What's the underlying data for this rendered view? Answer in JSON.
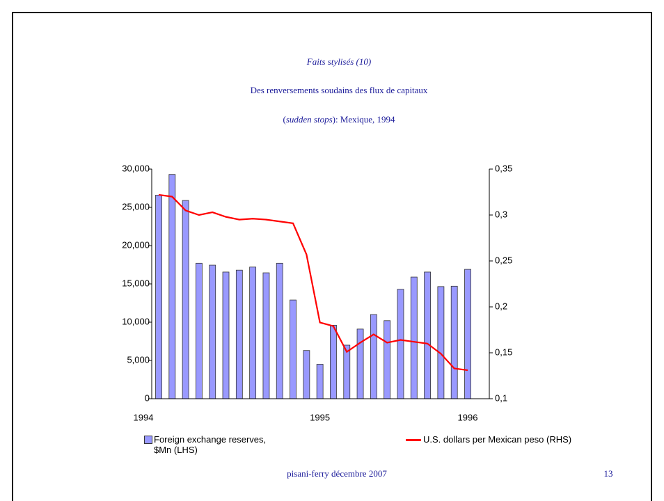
{
  "slide": {
    "kicker": "Faits stylisés (10)",
    "title": [
      "Des renversements soudains des flux de capitaux",
      "(",
      "sudden stops",
      "): Mexique, 1994"
    ],
    "footer": "pisani-ferry décembre 2007",
    "page": "13"
  },
  "chart_data": {
    "type": "bar_line",
    "categories": [
      "1994",
      null,
      null,
      null,
      null,
      null,
      null,
      null,
      null,
      null,
      null,
      null,
      "1995",
      null,
      null,
      null,
      null,
      null,
      null,
      null,
      null,
      null,
      null,
      "1996"
    ],
    "series": [
      {
        "name": "Foreign exchange reserves, $Mn (LHS)",
        "type": "bar",
        "color": "#9999ff",
        "values": [
          26600,
          29300,
          25900,
          17700,
          17450,
          16550,
          16800,
          17200,
          16450,
          17700,
          12900,
          6300,
          4500,
          9600,
          7000,
          9100,
          11000,
          10200,
          14300,
          15900,
          16550,
          14650,
          14700,
          16900
        ]
      },
      {
        "name": "U.S. dollars per Mexican peso (RHS)",
        "type": "line",
        "color": "#ff0000",
        "axis": "y2",
        "values": [
          0.322,
          0.32,
          0.305,
          0.3,
          0.303,
          0.298,
          0.295,
          0.296,
          0.295,
          0.293,
          0.291,
          0.257,
          0.183,
          0.179,
          0.151,
          0.161,
          0.17,
          0.161,
          0.164,
          0.162,
          0.16,
          0.149,
          0.133,
          0.131
        ]
      }
    ],
    "ylim": [
      0,
      30000
    ],
    "yticks": [
      0,
      {
        "value": 5000,
        "label": "5,000"
      },
      {
        "value": 10000,
        "label": "10,000"
      },
      {
        "value": 15000,
        "label": "15,000"
      },
      {
        "value": 20000,
        "label": "20,000"
      },
      {
        "value": 25000,
        "label": "25,000"
      },
      {
        "value": 30000,
        "label": "30,000"
      }
    ],
    "y2lim": [
      0.1,
      0.35
    ],
    "y2ticks": [
      {
        "value": 0.1,
        "label": "0,1"
      },
      {
        "value": 0.15,
        "label": "0,15"
      },
      {
        "value": 0.2,
        "label": "0,2"
      },
      {
        "value": 0.25,
        "label": "0,25"
      },
      {
        "value": 0.3,
        "label": "0,3"
      },
      {
        "value": 0.35,
        "label": "0,35"
      }
    ],
    "grid": false
  }
}
